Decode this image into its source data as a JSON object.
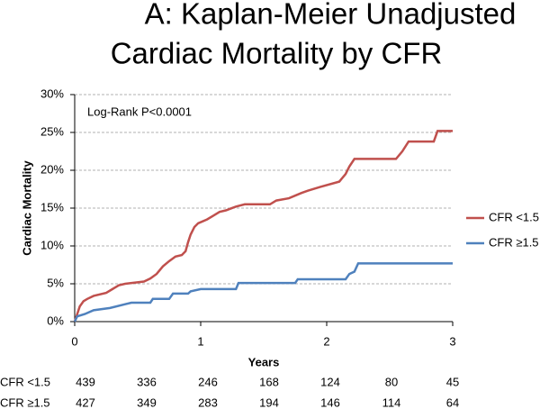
{
  "chart_data": {
    "type": "line",
    "title_lines": [
      "A: Kaplan-Meier Unadjusted",
      "Cardiac Mortality by CFR"
    ],
    "annotation": "Log-Rank P<0.0001",
    "ylabel": "Cardiac Mortality",
    "xlabel": "Years",
    "xlim": [
      0,
      3
    ],
    "xticks": [
      0,
      1,
      2,
      3
    ],
    "ylim": [
      0,
      30
    ],
    "yticks": [
      {
        "value": 0,
        "label": "0%"
      },
      {
        "value": 5,
        "label": "5%"
      },
      {
        "value": 10,
        "label": "10%"
      },
      {
        "value": 15,
        "label": "15%"
      },
      {
        "value": 20,
        "label": "20%"
      },
      {
        "value": 25,
        "label": "25%"
      },
      {
        "value": 30,
        "label": "30%"
      }
    ],
    "grid": true,
    "series": [
      {
        "name": "CFR <1.5",
        "color": "#c0504d",
        "x": [
          0,
          0.02,
          0.04,
          0.07,
          0.1,
          0.15,
          0.25,
          0.3,
          0.35,
          0.4,
          0.55,
          0.6,
          0.65,
          0.7,
          0.75,
          0.8,
          0.85,
          0.88,
          0.9,
          0.92,
          0.95,
          0.98,
          1.05,
          1.1,
          1.15,
          1.2,
          1.28,
          1.35,
          1.55,
          1.6,
          1.7,
          1.8,
          1.85,
          1.95,
          2.1,
          2.15,
          2.18,
          2.22,
          2.55,
          2.6,
          2.65,
          2.85,
          2.88,
          3.0
        ],
        "values": [
          0,
          1,
          2,
          2.7,
          3,
          3.4,
          3.8,
          4.3,
          4.8,
          5,
          5.3,
          5.7,
          6.3,
          7.3,
          8,
          8.6,
          8.8,
          9.3,
          10.5,
          11.5,
          12.5,
          13,
          13.5,
          14,
          14.5,
          14.7,
          15.2,
          15.5,
          15.5,
          16,
          16.3,
          17,
          17.3,
          17.8,
          18.5,
          19.5,
          20.5,
          21.5,
          21.5,
          22.5,
          23.8,
          23.8,
          25.2,
          25.2
        ]
      },
      {
        "name": "CFR ≥1.5",
        "color": "#4f81bd",
        "x": [
          0,
          0.02,
          0.08,
          0.15,
          0.28,
          0.4,
          0.45,
          0.6,
          0.62,
          0.75,
          0.78,
          0.9,
          0.92,
          1.0,
          1.28,
          1.3,
          1.75,
          1.77,
          2.15,
          2.18,
          2.22,
          2.25,
          3.0
        ],
        "values": [
          0,
          0.7,
          1,
          1.5,
          1.8,
          2.3,
          2.5,
          2.5,
          3,
          3,
          3.7,
          3.7,
          4,
          4.3,
          4.3,
          5.1,
          5.1,
          5.6,
          5.6,
          6.3,
          6.6,
          7.7,
          7.7
        ]
      }
    ],
    "legend": "right",
    "risk_table": [
      {
        "label": "CFR <1.5",
        "counts": [
          439,
          336,
          246,
          168,
          124,
          80,
          45
        ]
      },
      {
        "label": "CFR ≥1.5",
        "counts": [
          427,
          349,
          283,
          194,
          146,
          114,
          64
        ]
      }
    ]
  }
}
